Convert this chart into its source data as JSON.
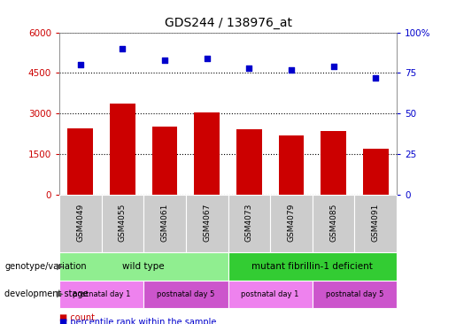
{
  "title": "GDS244 / 138976_at",
  "samples": [
    "GSM4049",
    "GSM4055",
    "GSM4061",
    "GSM4067",
    "GSM4073",
    "GSM4079",
    "GSM4085",
    "GSM4091"
  ],
  "counts": [
    2450,
    3350,
    2500,
    3050,
    2400,
    2200,
    2350,
    1700
  ],
  "percentiles": [
    80,
    90,
    83,
    84,
    78,
    77,
    79,
    72
  ],
  "left_ylim": [
    0,
    6000
  ],
  "left_yticks": [
    0,
    1500,
    3000,
    4500,
    6000
  ],
  "right_ylim": [
    0,
    100
  ],
  "right_yticks": [
    0,
    25,
    50,
    75,
    100
  ],
  "bar_color": "#cc0000",
  "scatter_color": "#0000cc",
  "genotype_labels": [
    {
      "text": "wild type",
      "start": 0,
      "end": 4,
      "color": "#90ee90"
    },
    {
      "text": "mutant fibrillin-1 deficient",
      "start": 4,
      "end": 8,
      "color": "#33cc33"
    }
  ],
  "stage_labels": [
    {
      "text": "postnatal day 1",
      "start": 0,
      "end": 2,
      "color": "#ee82ee"
    },
    {
      "text": "postnatal day 5",
      "start": 2,
      "end": 4,
      "color": "#cc66cc"
    },
    {
      "text": "postnatal day 1",
      "start": 4,
      "end": 6,
      "color": "#ee82ee"
    },
    {
      "text": "postnatal day 5",
      "start": 6,
      "end": 8,
      "color": "#cc66cc"
    }
  ],
  "genotype_row_label": "genotype/variation",
  "stage_row_label": "development stage",
  "legend_count_label": "count",
  "legend_percentile_label": "percentile rank within the sample",
  "tick_color_left": "#cc0000",
  "tick_color_right": "#0000cc",
  "xticklabel_color": "#000000",
  "grid_color": "#000000",
  "header_bg_color": "#cccccc",
  "arrow_color": "#555555"
}
